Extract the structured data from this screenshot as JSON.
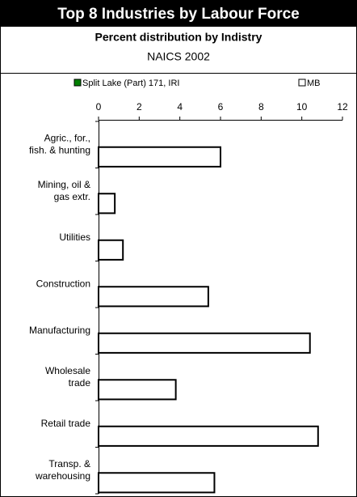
{
  "chart_data": {
    "type": "bar",
    "orientation": "horizontal",
    "title": "Top 8 Industries by Labour Force",
    "subtitle": "Percent distribution by Indistry",
    "subtitle2": "NAICS 2002",
    "categories": [
      "Agric., for.,\nfish. & hunting",
      "Mining, oil &\ngas extr.",
      "Utilities",
      "Construction",
      "Manufacturing",
      "Wholesale\ntrade",
      "Retail trade",
      "Transp. &\nwarehousing"
    ],
    "series": [
      {
        "name": "Split Lake (Part) 171, IRI",
        "color": "#008000",
        "values": [
          0,
          0,
          0,
          0,
          0,
          0,
          0,
          0
        ]
      },
      {
        "name": "MB",
        "color": "#ffffff",
        "values": [
          6.0,
          0.8,
          1.2,
          5.4,
          10.4,
          3.8,
          10.8,
          5.7
        ]
      }
    ],
    "xlim": [
      0,
      12
    ],
    "xticks": [
      0,
      2,
      4,
      6,
      8,
      10,
      12
    ],
    "legend": "top",
    "grid": false
  }
}
